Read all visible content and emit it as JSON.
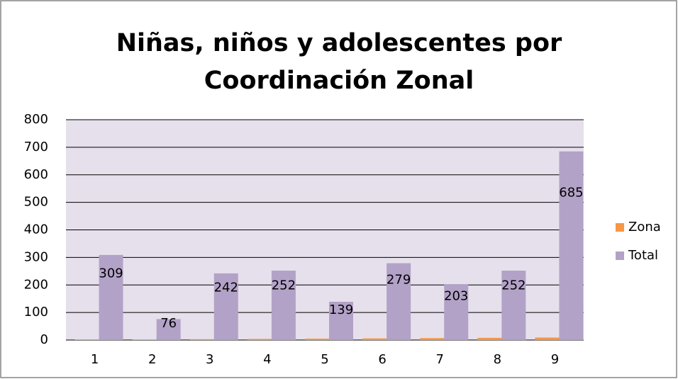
{
  "chart_data": {
    "type": "bar",
    "title": [
      "Niñas, niños y adolescentes por",
      "Coordinación Zonal"
    ],
    "categories": [
      "1",
      "2",
      "3",
      "4",
      "5",
      "6",
      "7",
      "8",
      "9"
    ],
    "series": [
      {
        "name": "Zona",
        "color": "#f79646",
        "values": [
          1,
          2,
          3,
          4,
          5,
          6,
          7,
          8,
          9
        ]
      },
      {
        "name": "Total",
        "color": "#b3a2c7",
        "values": [
          309,
          76,
          242,
          252,
          139,
          279,
          203,
          252,
          685
        ],
        "data_labels": true
      }
    ],
    "ylim": [
      0,
      800
    ],
    "yticks": [
      0,
      100,
      200,
      300,
      400,
      500,
      600,
      700,
      800
    ],
    "grid": true,
    "legend": "right"
  }
}
